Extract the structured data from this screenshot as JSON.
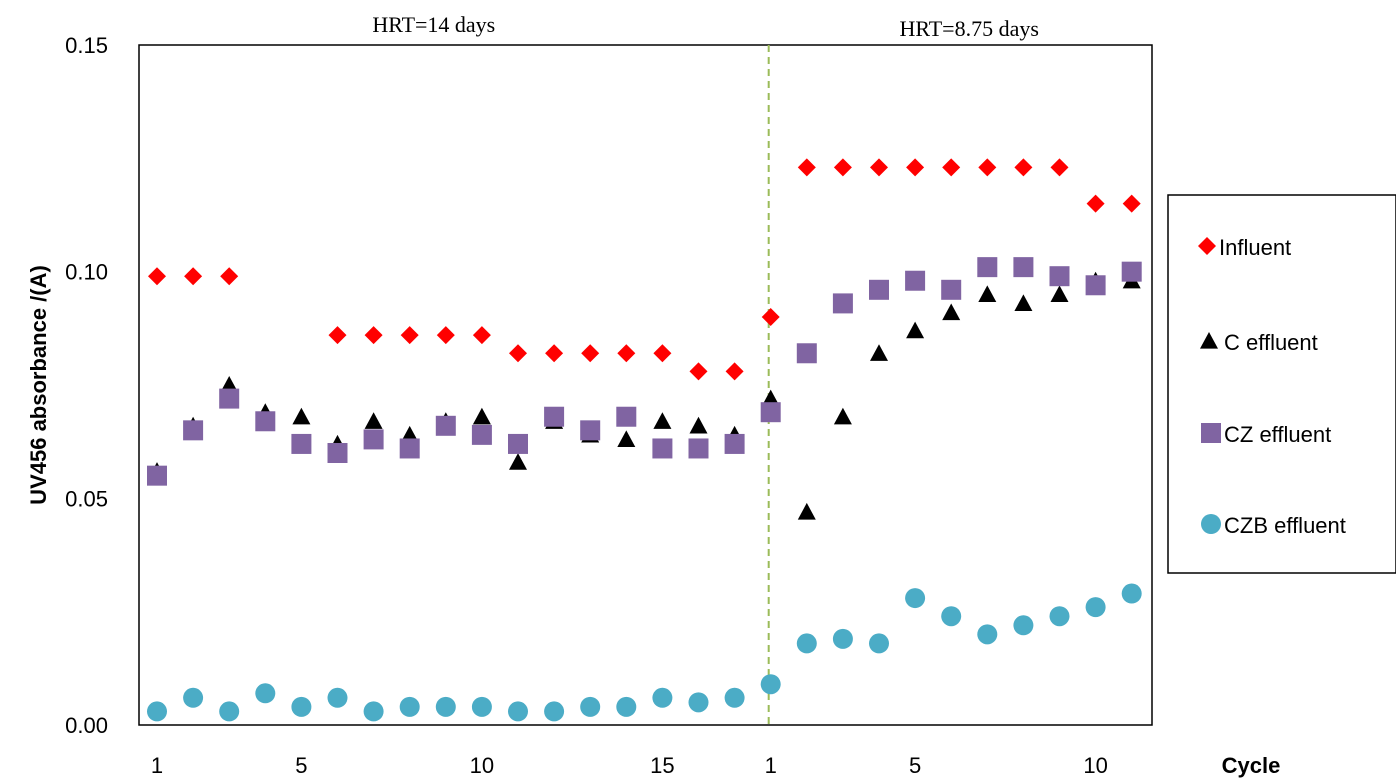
{
  "chart_data": {
    "type": "scatter",
    "ylabel": "UV456 absorbance /(A)",
    "xlabel": "Cycle",
    "ylim": [
      0,
      0.15
    ],
    "y_ticks": [
      "0.00",
      "0.05",
      "0.10",
      "0.15"
    ],
    "grid": false,
    "legend_position": "right",
    "phases": [
      {
        "label": "HRT=14 days",
        "cycles": 17,
        "tick_labels": [
          "1",
          "5",
          "10",
          "15"
        ]
      },
      {
        "label": "HRT=8.75 days",
        "cycles": 11,
        "tick_labels": [
          "1",
          "5",
          "10"
        ]
      }
    ],
    "divider": "dashed vertical line at start of second phase",
    "series": [
      {
        "name": "Influent",
        "marker": "diamond",
        "color": "#ff0000",
        "phase1": [
          0.099,
          0.099,
          0.099,
          null,
          null,
          0.086,
          0.086,
          0.086,
          0.086,
          0.086,
          0.082,
          0.082,
          0.082,
          0.082,
          0.082,
          0.078,
          0.078
        ],
        "phase2": [
          0.09,
          0.123,
          0.123,
          0.123,
          0.123,
          0.123,
          0.123,
          0.123,
          0.123,
          0.115,
          0.115
        ]
      },
      {
        "name": "C effluent",
        "marker": "triangle",
        "color": "#000000",
        "phase1": [
          0.056,
          0.066,
          0.075,
          0.069,
          0.068,
          0.062,
          0.067,
          0.064,
          0.067,
          0.068,
          0.058,
          0.067,
          0.064,
          0.063,
          0.067,
          0.066,
          0.064
        ],
        "phase2": [
          0.072,
          0.047,
          0.068,
          0.082,
          0.087,
          0.091,
          0.095,
          0.093,
          0.095,
          0.098,
          0.098
        ]
      },
      {
        "name": "CZ effluent",
        "marker": "square",
        "color": "#8064a2",
        "phase1": [
          0.055,
          0.065,
          0.072,
          0.067,
          0.062,
          0.06,
          0.063,
          0.061,
          0.066,
          0.064,
          0.062,
          0.068,
          0.065,
          0.068,
          0.061,
          0.061,
          0.062
        ],
        "phase2": [
          0.069,
          0.082,
          0.093,
          0.096,
          0.098,
          0.096,
          0.101,
          0.101,
          0.099,
          0.097,
          0.1
        ]
      },
      {
        "name": "CZB effluent",
        "marker": "circle",
        "color": "#4bacc6",
        "phase1": [
          0.003,
          0.006,
          0.003,
          0.007,
          0.004,
          0.006,
          0.003,
          0.004,
          0.004,
          0.004,
          0.003,
          0.003,
          0.004,
          0.004,
          0.006,
          0.005,
          0.006
        ],
        "phase2": [
          0.009,
          0.018,
          0.019,
          0.018,
          0.028,
          0.024,
          0.02,
          0.022,
          0.024,
          0.026,
          0.029
        ]
      }
    ]
  }
}
